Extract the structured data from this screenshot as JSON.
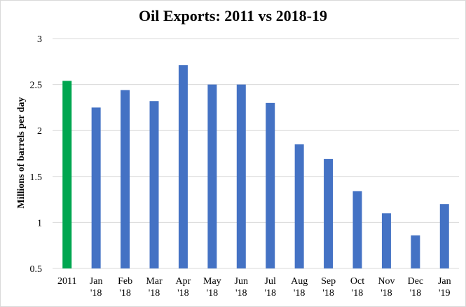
{
  "chart_data": {
    "type": "bar",
    "title": "Oil Exports: 2011 vs 2018-19",
    "xlabel": "",
    "ylabel": "Millions of barrels per day",
    "ylim": [
      0.5,
      3
    ],
    "yticks": [
      "0.5",
      "1",
      "1.5",
      "2",
      "2.5",
      "3"
    ],
    "grid": true,
    "categories": [
      [
        "2011"
      ],
      [
        "Jan",
        "'18"
      ],
      [
        "Feb",
        "'18"
      ],
      [
        "Mar",
        "'18"
      ],
      [
        "Apr",
        "'18"
      ],
      [
        "May",
        "'18"
      ],
      [
        "Jun",
        "'18"
      ],
      [
        "Jul",
        "'18"
      ],
      [
        "Aug",
        "'18"
      ],
      [
        "Sep",
        "'18"
      ],
      [
        "Oct",
        "'18"
      ],
      [
        "Nov",
        "'18"
      ],
      [
        "Dec",
        "'18"
      ],
      [
        "Jan",
        "'19"
      ]
    ],
    "values": [
      2.54,
      2.25,
      2.44,
      2.32,
      2.71,
      2.5,
      2.5,
      2.3,
      1.85,
      1.69,
      1.34,
      1.1,
      0.86,
      1.2
    ],
    "colors": {
      "highlight": "#00a650",
      "bars": "#4472c4",
      "grid": "#d9d9d9"
    }
  }
}
